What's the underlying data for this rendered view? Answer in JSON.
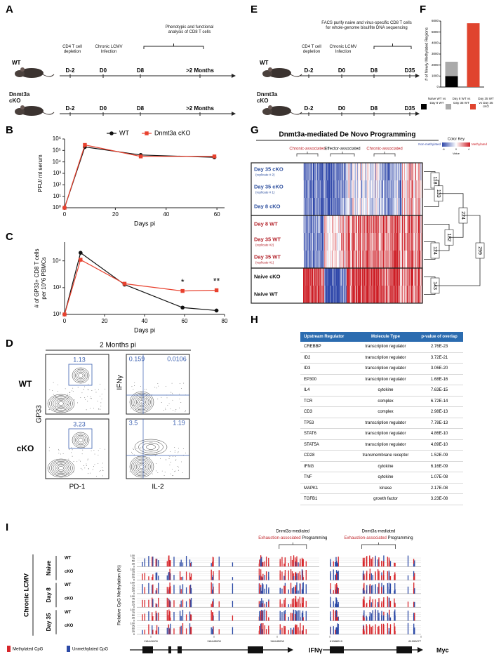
{
  "panel_labels": [
    "A",
    "B",
    "C",
    "D",
    "E",
    "F",
    "G",
    "H",
    "I"
  ],
  "panel_a": {
    "groups": [
      "WT",
      "Dnmt3a cKO"
    ],
    "timepoints": [
      "D-2",
      "D0",
      "D8",
      ">2 Months"
    ],
    "annotations": [
      "CD4 T cell depletion",
      "Chronic LCMV Infection",
      "Phenotypic and functional analysis of CD8 T cells"
    ]
  },
  "panel_e": {
    "groups": [
      "WT",
      "Dnmt3a cKO"
    ],
    "timepoints": [
      "D-2",
      "D0",
      "D8",
      "D35"
    ],
    "annotations": [
      "CD4 T cell depletion",
      "Chronic LCMV Infection",
      "FACS purify naive and virus-specific CD8 T cells for whole-genome bisulfite DNA sequencing"
    ]
  },
  "chart_data": [
    {
      "type": "line",
      "ylabel": [
        "PFU/ ml serum"
      ],
      "xlabel": "Days pi",
      "log_y": true,
      "legend": "top",
      "x": [
        0,
        8,
        30,
        59
      ],
      "series": [
        {
          "name": "WT",
          "color": "#111111",
          "marker": "circle",
          "values": [
            1,
            200000,
            40000,
            25000
          ]
        },
        {
          "name": "Dnmt3a cKO",
          "color": "#e8412e",
          "marker": "square",
          "values": [
            1,
            300000,
            30000,
            30000
          ]
        }
      ],
      "xlim": [
        0,
        63
      ],
      "xticks": [
        0,
        20,
        40,
        60
      ],
      "ylim": [
        1,
        1000000
      ],
      "yticks": [
        {
          "value": 1,
          "label": "10⁰"
        },
        {
          "value": 10,
          "label": "10¹"
        },
        {
          "value": 100,
          "label": "10²"
        },
        {
          "value": 1000,
          "label": "10³"
        },
        {
          "value": 10000,
          "label": "10⁴"
        },
        {
          "value": 100000,
          "label": "10⁵"
        },
        {
          "value": 1000000,
          "label": "10⁶"
        }
      ]
    },
    {
      "type": "line",
      "ylabel": [
        "# of GP33+ CD8 T cells",
        "per 10^6 PBMCs"
      ],
      "xlabel": "Days pi",
      "log_y": true,
      "x": [
        0,
        8,
        30,
        59,
        76
      ],
      "series": [
        {
          "color": "#111111",
          "marker": "circle",
          "values": [
            100,
            20000,
            1300,
            180,
            140
          ]
        },
        {
          "color": "#e8412e",
          "marker": "square",
          "values": [
            100,
            11000,
            1400,
            750,
            800
          ]
        }
      ],
      "annotations": [
        "*",
        "**"
      ],
      "xlim": [
        0,
        80
      ],
      "xticks": [
        0,
        20,
        40,
        60,
        80
      ],
      "ylim": [
        100,
        50000
      ],
      "yticks": [
        {
          "value": 100,
          "label": "10²"
        },
        {
          "value": 1000,
          "label": "10³"
        },
        {
          "value": 10000,
          "label": "10⁴"
        }
      ]
    },
    {
      "type": "bar",
      "stacked": true,
      "ylabel": "# of Newly Methylated Regions",
      "categories": [
        null,
        null
      ],
      "series": [
        {
          "name": "Naive WT vs Day 8 WT",
          "color": "#000000",
          "values": [
            1000,
            null
          ]
        },
        {
          "name": "Day 8 WT vs Day 35 WT",
          "color": "#aaaaaa",
          "values": [
            1300,
            null
          ]
        },
        {
          "name": "Day 35 WT vs Day 35 cKO",
          "color": "#e0442e",
          "values": [
            null,
            5800
          ]
        }
      ],
      "ylim": [
        0,
        6000
      ],
      "yticks": [
        0,
        1000,
        2000,
        3000,
        4000,
        5000,
        6000
      ]
    }
  ],
  "panel_d": {
    "title": "2 Months pi",
    "rows": [
      "WT",
      "cKO"
    ],
    "axes": [
      "GP33",
      "PD-1",
      "IFNγ",
      "IL-2"
    ],
    "gates": [
      "1.13",
      "0.159",
      "0.0106",
      "3.23",
      "3.5",
      "1.19"
    ]
  },
  "panel_g": {
    "title": "Dnmt3a-mediated De Novo Programming",
    "clusters": [
      {
        "label": "Chronic-associated",
        "color": "#c0272d"
      },
      {
        "label": "Effector-associated",
        "color": "#111111"
      },
      {
        "label": "Chronic-associated",
        "color": "#c0272d"
      }
    ],
    "rows": [
      {
        "label": "Day 35 cKO",
        "note": "(replicate # 2)",
        "color": "#2d4f9e"
      },
      {
        "label": "Day 35 cKO",
        "note": "(replicate # 1)",
        "color": "#2d4f9e"
      },
      {
        "label": "Day 8 cKO",
        "color": "#2d4f9e"
      },
      {
        "label": "Day 8 WT",
        "color": "#b3232b"
      },
      {
        "label": "Day 35 WT",
        "note": "(replicate #2)",
        "color": "#b3232b"
      },
      {
        "label": "Day 35 WT",
        "note": "(replicate #1)",
        "color": "#b3232b"
      },
      {
        "label": "Naive cKO",
        "color": "#111111"
      },
      {
        "label": "Naive WT",
        "color": "#111111"
      }
    ],
    "color_key": {
      "title": "Color Key",
      "low": "Non-methylated",
      "high": "Methylated",
      "ticks": [
        "-6",
        "0",
        "4"
      ],
      "label": "Value"
    },
    "dendrogram": [
      "118",
      "133",
      "224",
      "182",
      "124",
      "299",
      "143"
    ]
  },
  "panel_h": {
    "columns": [
      "Upstream Regulator",
      "Molecule Type",
      "p-value of overlap"
    ],
    "rows": [
      [
        "CREBBP",
        "transcription regulator",
        "2.76E-23"
      ],
      [
        "ID2",
        "transcription regulator",
        "3.72E-21"
      ],
      [
        "ID3",
        "transcription regulator",
        "3.06E-20"
      ],
      [
        "EP300",
        "transcription regulator",
        "1.68E-16"
      ],
      [
        "IL4",
        "cytokine",
        "7.63E-15"
      ],
      [
        "TCR",
        "complex",
        "6.72E-14"
      ],
      [
        "CD3",
        "complex",
        "2.98E-13"
      ],
      [
        "TP53",
        "transcription regulator",
        "7.78E-13"
      ],
      [
        "STAT6",
        "transcription regulator",
        "4.86E-10"
      ],
      [
        "STAT5A",
        "transcription regulator",
        "4.89E-10"
      ],
      [
        "CD28",
        "transmembrane receptor",
        "1.52E-09"
      ],
      [
        "IFNG",
        "cytokine",
        "6.16E-09"
      ],
      [
        "TNF",
        "cytokine",
        "1.07E-08"
      ],
      [
        "MAPK1",
        "kinase",
        "2.17E-08"
      ],
      [
        "TGFB1",
        "growth factor",
        "3.23E-08"
      ]
    ]
  },
  "panel_i": {
    "condition": "Chronic LCMV",
    "timepoints": [
      "Naive",
      "Day 8",
      "Day 35"
    ],
    "genotypes": [
      "WT",
      "cKO"
    ],
    "ylabel": "Relative CpG Methylation (%)",
    "track_ticks": [
      "100",
      "75",
      "50",
      "25",
      "0"
    ],
    "annotation": [
      "Dnmt3a-mediated",
      "Exhaustion-associated",
      "Programming"
    ],
    "regions": [
      {
        "gene": "IFNγ",
        "coords": [
          "118441000",
          "118443000",
          "118445000"
        ]
      },
      {
        "gene": "Myc",
        "coords": [
          "61988019",
          "61990077"
        ]
      }
    ],
    "legend": [
      "Methylated CpG",
      "Unmethylated CpG"
    ]
  }
}
